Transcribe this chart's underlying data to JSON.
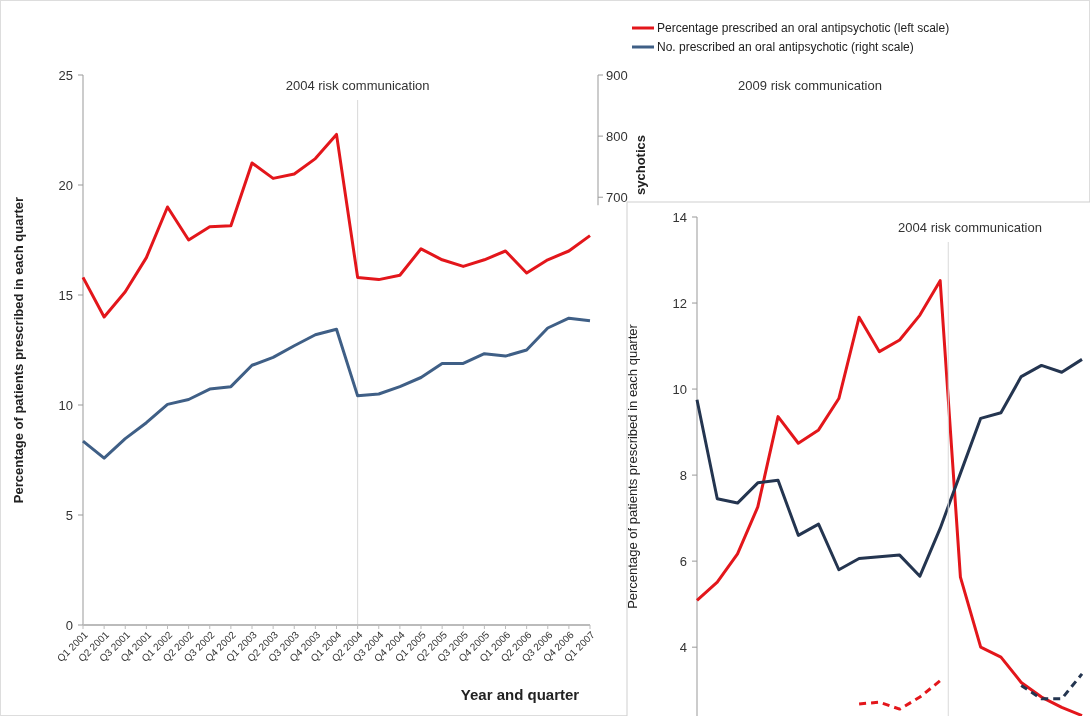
{
  "chart_data": [
    {
      "type": "line",
      "categories": [
        "Q1 2001",
        "Q2 2001",
        "Q3 2001",
        "Q4 2001",
        "Q1 2002",
        "Q2 2002",
        "Q3 2002",
        "Q4 2002",
        "Q1 2003",
        "Q2 2003",
        "Q3 2003",
        "Q4 2003",
        "Q1 2004",
        "Q2 2004",
        "Q3 2004",
        "Q4 2004",
        "Q1 2005",
        "Q2 2005",
        "Q3 2005",
        "Q4 2005",
        "Q1 2006",
        "Q2 2006",
        "Q3 2006",
        "Q4 2006",
        "Q1 2007"
      ],
      "xlabel": "Year and quarter",
      "ylabel": "Percentage of patients prescribed in each quarter",
      "y2label": "sychotics",
      "ylim": [
        0,
        25
      ],
      "yticks": [
        0,
        5,
        10,
        15,
        20,
        25
      ],
      "y2lim": [
        0,
        900
      ],
      "y2ticks": [
        700,
        800,
        900
      ],
      "legend": "top right",
      "series": [
        {
          "name": "Percentage prescribed an oral antipsychotic (left scale)",
          "color": "#e3161b",
          "values": [
            15.8,
            14.0,
            15.15,
            16.7,
            19.0,
            17.5,
            18.1,
            18.15,
            21.0,
            20.3,
            20.5,
            21.2,
            22.3,
            15.8,
            15.7,
            15.9,
            17.1,
            16.6,
            16.3,
            16.6,
            17.0,
            16.0,
            16.6,
            17.0,
            17.7
          ]
        },
        {
          "name": "No. prescribed an oral antipsychotic (right scale)",
          "color": "#3f5f86",
          "axis": "y2",
          "values": [
            301,
            273,
            305,
            331,
            361,
            369,
            386,
            390,
            425,
            438,
            457,
            475,
            484,
            375,
            378,
            390,
            405,
            428,
            428,
            444,
            440,
            450,
            486,
            502,
            498
          ]
        }
      ],
      "ref_lines": [
        {
          "axis": "x",
          "value": "Q2 2004",
          "label": "2004 risk communication",
          "color": "#d9d9d9"
        }
      ],
      "annotations": [
        "2009 risk communication"
      ]
    },
    {
      "type": "line",
      "categories": [
        null,
        null,
        null,
        null,
        null,
        null,
        null,
        null,
        null,
        null,
        null,
        null,
        null,
        null,
        null,
        null,
        null,
        null,
        null,
        null
      ],
      "ylabel": "Percentage of patients prescribed in each quarter",
      "ylim": [
        2.4,
        14
      ],
      "yticks": [
        4,
        6,
        8,
        10,
        12,
        14
      ],
      "tick_labels": "y",
      "series": [
        {
          "color": "#e3161b",
          "values": [
            5.09,
            5.51,
            6.17,
            7.26,
            9.36,
            8.74,
            9.05,
            9.78,
            11.67,
            10.87,
            11.14,
            11.72,
            12.52,
            5.63,
            4.0,
            3.77,
            3.18,
            2.84,
            2.6,
            2.41
          ]
        },
        {
          "color": "#243550",
          "values": [
            9.75,
            7.45,
            7.35,
            7.82,
            7.88,
            6.6,
            6.86,
            5.8,
            6.06,
            6.1,
            6.14,
            5.65,
            6.76,
            8.04,
            9.32,
            9.45,
            10.29,
            10.55,
            10.39,
            10.69
          ]
        },
        {
          "color": "#e3161b",
          "line_style": "dashed",
          "values": [
            null,
            null,
            null,
            null,
            null,
            null,
            null,
            null,
            2.68,
            2.72,
            2.56,
            2.84,
            3.22,
            null,
            null,
            null,
            null,
            null,
            null,
            null
          ]
        },
        {
          "color": "#243550",
          "line_style": "dashed",
          "values": [
            null,
            null,
            null,
            null,
            null,
            null,
            null,
            null,
            null,
            null,
            null,
            null,
            null,
            null,
            null,
            null,
            3.11,
            2.8,
            2.8,
            3.38
          ]
        }
      ],
      "annotations": [
        "2004 risk communication"
      ]
    }
  ]
}
